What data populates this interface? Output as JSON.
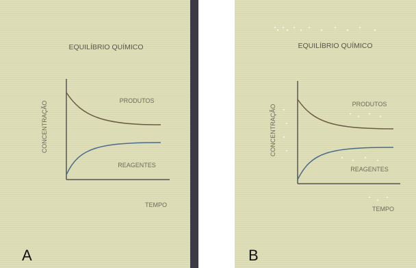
{
  "panels": [
    {
      "label": "A",
      "title": "EQUILÍBRIO QUÍMICO",
      "y_label": "CONCENTRAÇÃO",
      "x_label": "TEMPO",
      "upper_curve": "PRODUTOS",
      "lower_curve": "REAGENTES"
    },
    {
      "label": "B",
      "title": "EQUILÍBRIO QUÍMICO",
      "y_label": "CONCENTRAÇÃO",
      "x_label": "TEMPO",
      "upper_curve": "PRODUTOS",
      "lower_curve": "REAGENTES"
    }
  ]
}
